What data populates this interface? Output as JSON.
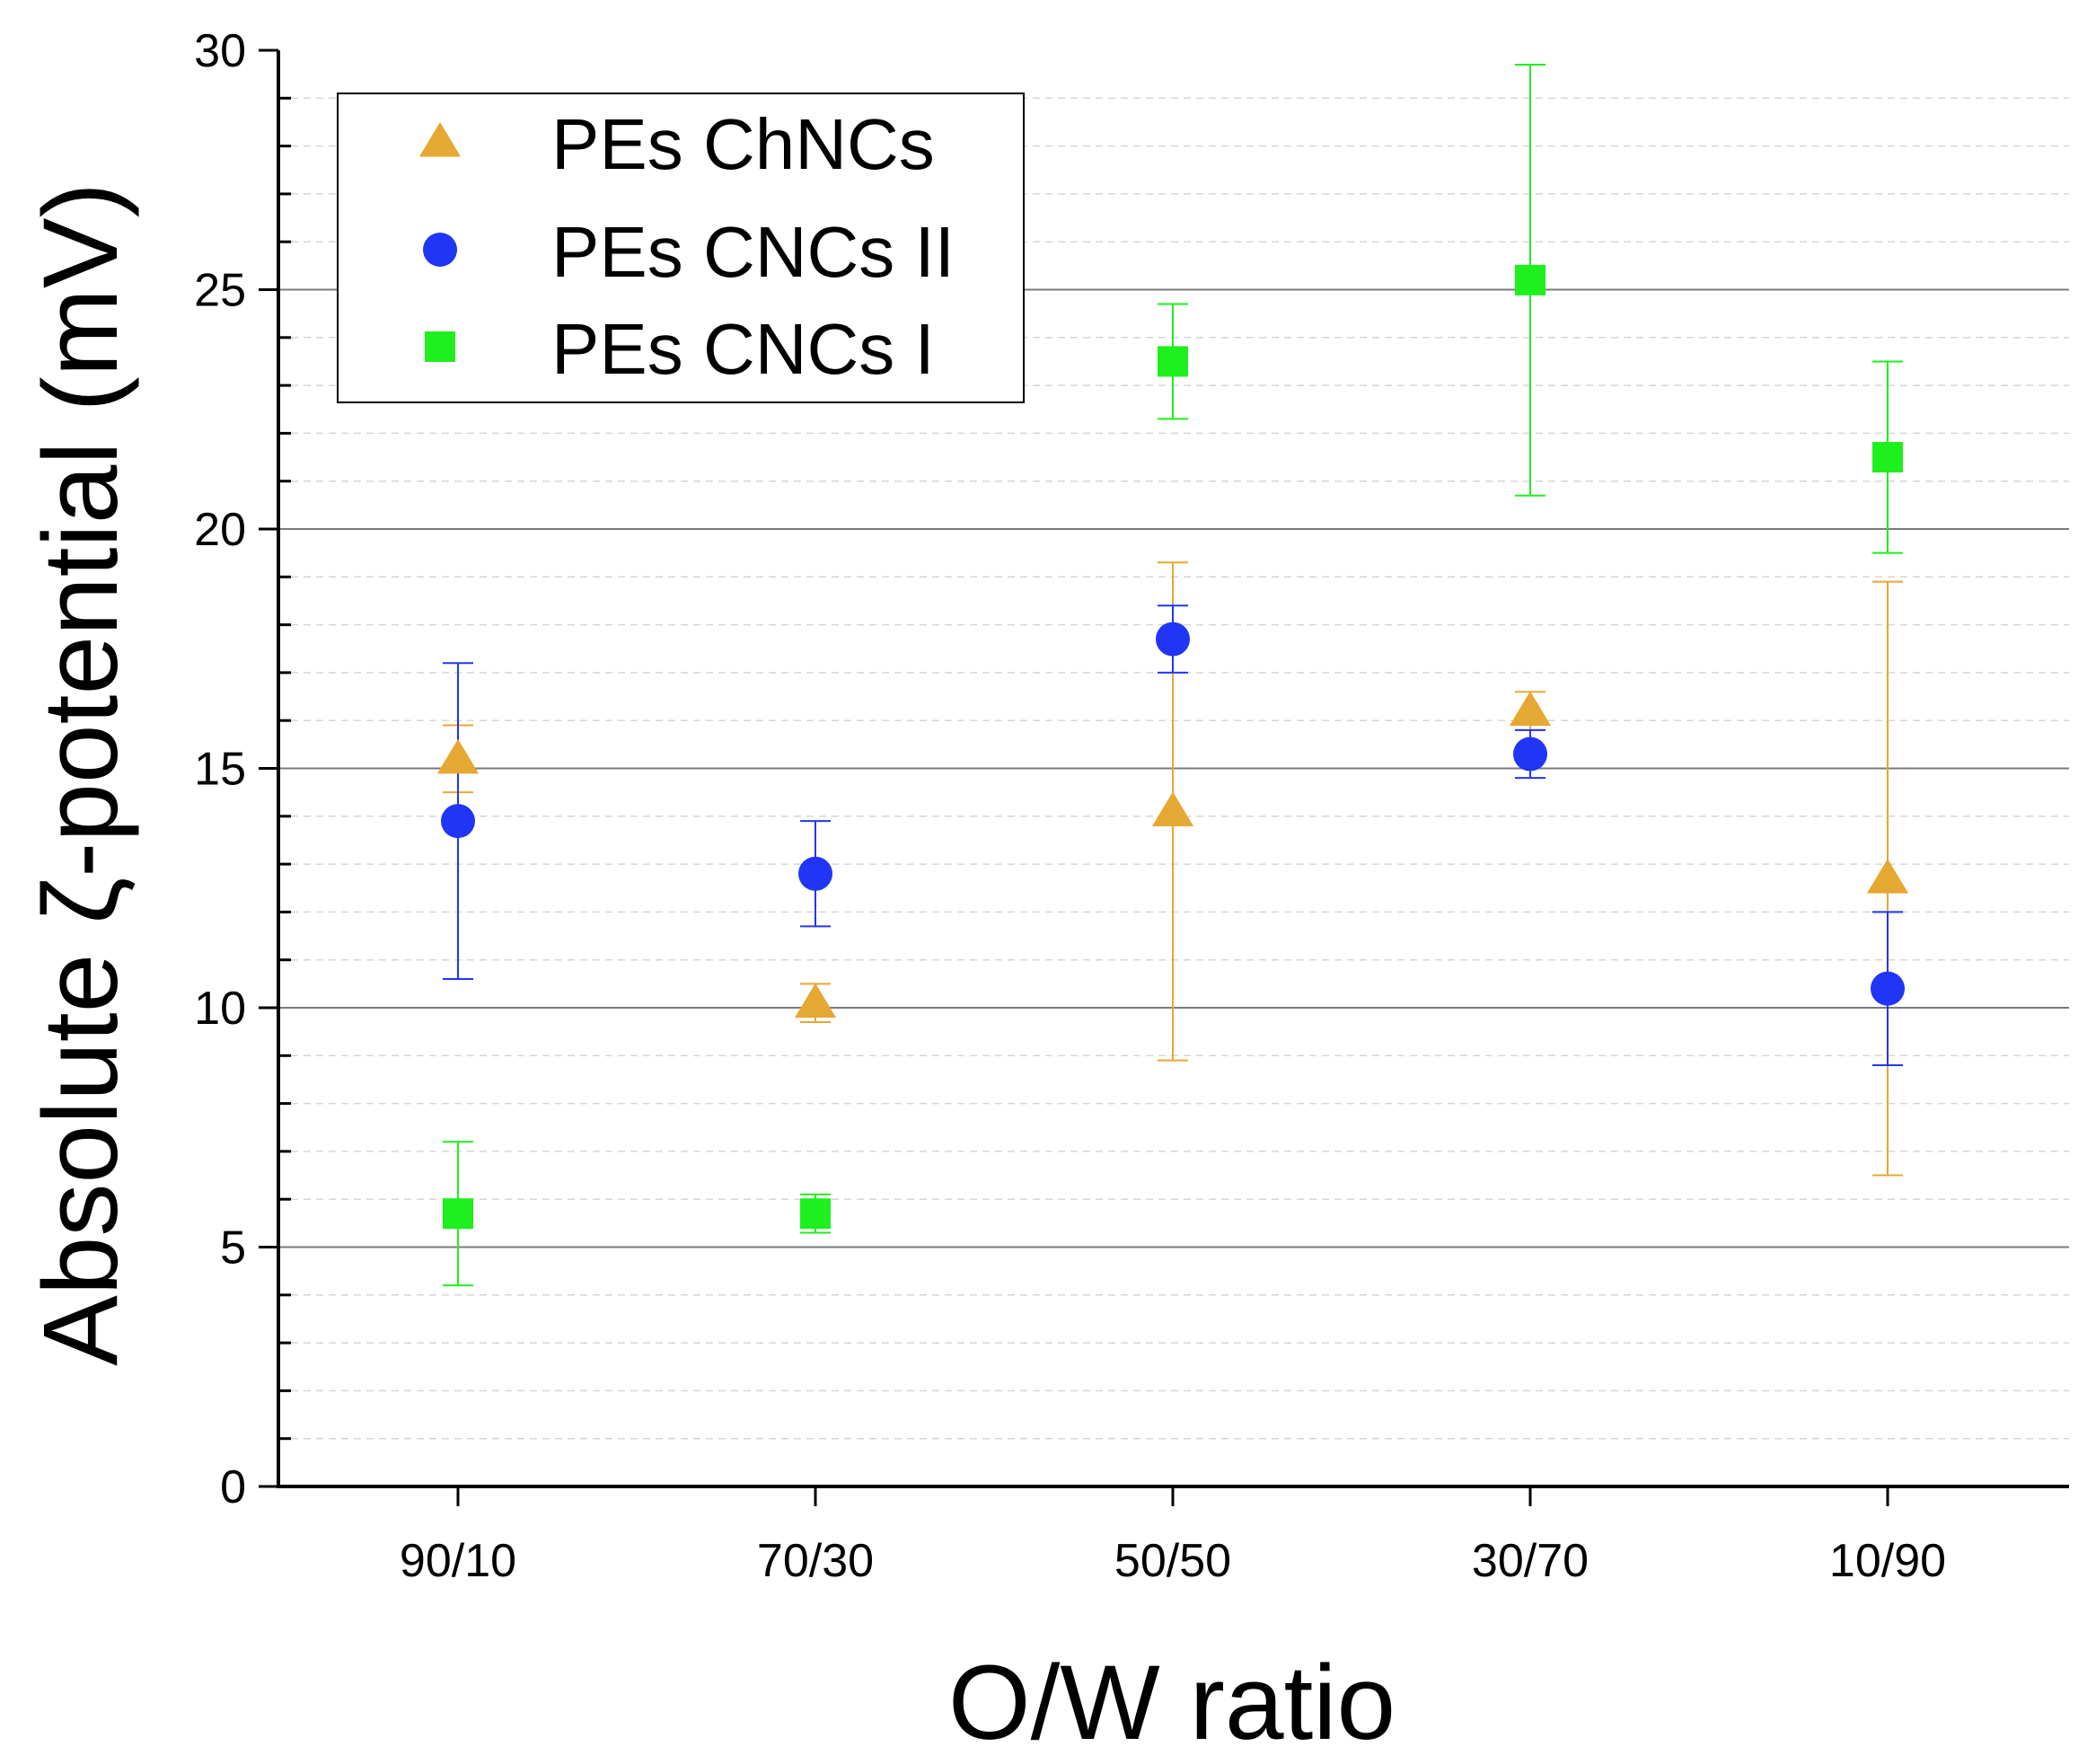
{
  "chart_data": {
    "type": "scatter",
    "xlabel": "O/W ratio",
    "ylabel": "Absolute ζ-potential (mV)",
    "categories": [
      "90/10",
      "70/30",
      "50/50",
      "30/70",
      "10/90"
    ],
    "ylim": [
      0,
      30
    ],
    "yticks": [
      "0",
      "5",
      "10",
      "15",
      "20",
      "25",
      "30"
    ],
    "grid": true,
    "error_bars": true,
    "legend_position": "top-left",
    "series": [
      {
        "name": "PEs ChNCs",
        "marker": "triangle",
        "color": "#E5A832",
        "values": [
          15.2,
          10.1,
          14.1,
          16.2,
          12.7
        ],
        "err_low": [
          14.5,
          9.7,
          8.9,
          15.8,
          6.5
        ],
        "err_high": [
          15.9,
          10.5,
          19.3,
          16.6,
          18.9
        ]
      },
      {
        "name": "PEs CNCs II",
        "marker": "circle",
        "color": "#2035F5",
        "values": [
          13.9,
          12.8,
          17.7,
          15.3,
          10.4
        ],
        "err_low": [
          10.6,
          11.7,
          17.0,
          14.8,
          8.8
        ],
        "err_high": [
          17.2,
          13.9,
          18.4,
          15.8,
          12.0
        ]
      },
      {
        "name": "PEs CNCs I",
        "marker": "square",
        "color": "#1EF01E",
        "values": [
          5.7,
          5.7,
          23.5,
          25.2,
          21.5
        ],
        "err_low": [
          4.2,
          5.3,
          22.3,
          20.7,
          19.5
        ],
        "err_high": [
          7.2,
          6.1,
          24.7,
          29.7,
          23.5
        ]
      }
    ]
  }
}
